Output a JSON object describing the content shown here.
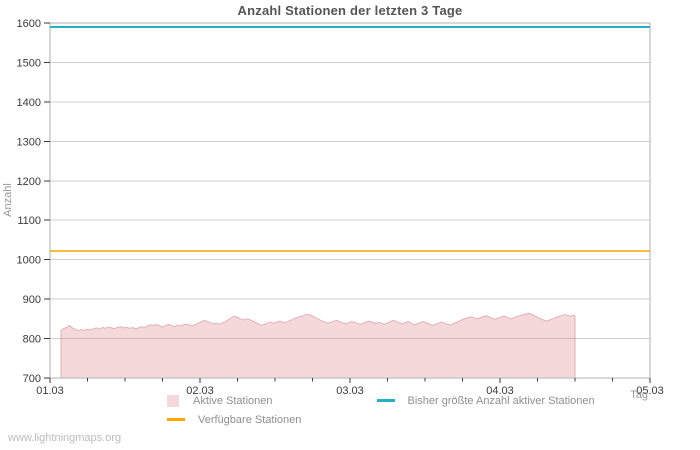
{
  "page": {
    "watermark": "www.lightningmaps.org"
  },
  "colors": {
    "grid": "rgba(135,135,135,0.4)",
    "border": "#b2b2b2",
    "tick": "#3a3a3a",
    "pink_fill": "#f5d8da",
    "pink_edge": "#e2b1b6",
    "teal": "#25b0c7",
    "orange": "#f6a700"
  },
  "chart_data": {
    "type": "area",
    "title": "Anzahl Stationen der letzten 3 Tage",
    "xlabel": "Tag",
    "ylabel": "Anzahl",
    "ylim": [
      700,
      1600
    ],
    "y_ticks": [
      700,
      800,
      900,
      1000,
      1100,
      1200,
      1300,
      1400,
      1500,
      1600
    ],
    "x_ticks": [
      "01.03",
      "02.03",
      "03.03",
      "04.03",
      "05.03"
    ],
    "minor_ticks_per_day": 4,
    "grid": true,
    "legend_position": "bottom",
    "series": [
      {
        "name": "Aktive Stationen",
        "type": "area",
        "fill_color": "#f5d8da",
        "edge_color": "#e2b1b6",
        "points": [
          [
            0.073,
            820
          ],
          [
            0.09,
            825
          ],
          [
            0.11,
            828
          ],
          [
            0.13,
            833
          ],
          [
            0.15,
            827
          ],
          [
            0.17,
            823
          ],
          [
            0.19,
            820
          ],
          [
            0.21,
            823
          ],
          [
            0.23,
            821
          ],
          [
            0.25,
            824
          ],
          [
            0.27,
            822
          ],
          [
            0.29,
            825
          ],
          [
            0.31,
            827
          ],
          [
            0.33,
            824
          ],
          [
            0.35,
            828
          ],
          [
            0.37,
            826
          ],
          [
            0.39,
            829
          ],
          [
            0.41,
            827
          ],
          [
            0.43,
            825
          ],
          [
            0.45,
            828
          ],
          [
            0.47,
            830
          ],
          [
            0.49,
            827
          ],
          [
            0.51,
            829
          ],
          [
            0.53,
            826
          ],
          [
            0.55,
            828
          ],
          [
            0.57,
            825
          ],
          [
            0.59,
            827
          ],
          [
            0.61,
            830
          ],
          [
            0.63,
            828
          ],
          [
            0.65,
            832
          ],
          [
            0.67,
            835
          ],
          [
            0.69,
            833
          ],
          [
            0.71,
            836
          ],
          [
            0.73,
            832
          ],
          [
            0.75,
            829
          ],
          [
            0.77,
            833
          ],
          [
            0.79,
            836
          ],
          [
            0.81,
            833
          ],
          [
            0.83,
            830
          ],
          [
            0.85,
            834
          ],
          [
            0.87,
            832
          ],
          [
            0.89,
            835
          ],
          [
            0.91,
            837
          ],
          [
            0.93,
            834
          ],
          [
            0.95,
            832
          ],
          [
            0.97,
            836
          ],
          [
            0.99,
            839
          ],
          [
            1.01,
            843
          ],
          [
            1.03,
            846
          ],
          [
            1.05,
            843
          ],
          [
            1.07,
            840
          ],
          [
            1.09,
            837
          ],
          [
            1.11,
            839
          ],
          [
            1.13,
            836
          ],
          [
            1.15,
            840
          ],
          [
            1.17,
            843
          ],
          [
            1.19,
            848
          ],
          [
            1.21,
            853
          ],
          [
            1.23,
            857
          ],
          [
            1.25,
            854
          ],
          [
            1.27,
            850
          ],
          [
            1.29,
            847
          ],
          [
            1.31,
            850
          ],
          [
            1.33,
            848
          ],
          [
            1.35,
            845
          ],
          [
            1.37,
            841
          ],
          [
            1.39,
            837
          ],
          [
            1.41,
            833
          ],
          [
            1.43,
            836
          ],
          [
            1.45,
            839
          ],
          [
            1.47,
            842
          ],
          [
            1.49,
            839
          ],
          [
            1.51,
            841
          ],
          [
            1.53,
            844
          ],
          [
            1.55,
            842
          ],
          [
            1.57,
            840
          ],
          [
            1.59,
            844
          ],
          [
            1.61,
            847
          ],
          [
            1.63,
            851
          ],
          [
            1.65,
            854
          ],
          [
            1.67,
            856
          ],
          [
            1.69,
            858
          ],
          [
            1.71,
            862
          ],
          [
            1.73,
            860
          ],
          [
            1.75,
            857
          ],
          [
            1.77,
            853
          ],
          [
            1.79,
            849
          ],
          [
            1.81,
            845
          ],
          [
            1.83,
            842
          ],
          [
            1.85,
            839
          ],
          [
            1.87,
            841
          ],
          [
            1.89,
            844
          ],
          [
            1.91,
            846
          ],
          [
            1.93,
            843
          ],
          [
            1.95,
            840
          ],
          [
            1.97,
            838
          ],
          [
            1.99,
            840
          ],
          [
            2.01,
            843
          ],
          [
            2.03,
            841
          ],
          [
            2.05,
            838
          ],
          [
            2.07,
            836
          ],
          [
            2.09,
            839
          ],
          [
            2.11,
            842
          ],
          [
            2.13,
            844
          ],
          [
            2.15,
            841
          ],
          [
            2.17,
            838
          ],
          [
            2.19,
            841
          ],
          [
            2.21,
            839
          ],
          [
            2.23,
            836
          ],
          [
            2.25,
            840
          ],
          [
            2.27,
            843
          ],
          [
            2.29,
            846
          ],
          [
            2.31,
            843
          ],
          [
            2.33,
            840
          ],
          [
            2.35,
            837
          ],
          [
            2.37,
            841
          ],
          [
            2.39,
            843
          ],
          [
            2.41,
            839
          ],
          [
            2.43,
            835
          ],
          [
            2.45,
            838
          ],
          [
            2.47,
            841
          ],
          [
            2.49,
            843
          ],
          [
            2.51,
            840
          ],
          [
            2.53,
            837
          ],
          [
            2.55,
            833
          ],
          [
            2.57,
            836
          ],
          [
            2.59,
            839
          ],
          [
            2.61,
            842
          ],
          [
            2.63,
            839
          ],
          [
            2.65,
            836
          ],
          [
            2.67,
            834
          ],
          [
            2.69,
            838
          ],
          [
            2.71,
            841
          ],
          [
            2.73,
            845
          ],
          [
            2.75,
            848
          ],
          [
            2.77,
            851
          ],
          [
            2.79,
            853
          ],
          [
            2.81,
            855
          ],
          [
            2.83,
            852
          ],
          [
            2.85,
            850
          ],
          [
            2.87,
            853
          ],
          [
            2.89,
            856
          ],
          [
            2.91,
            858
          ],
          [
            2.93,
            854
          ],
          [
            2.95,
            851
          ],
          [
            2.97,
            849
          ],
          [
            2.99,
            852
          ],
          [
            3.01,
            855
          ],
          [
            3.03,
            857
          ],
          [
            3.05,
            853
          ],
          [
            3.07,
            850
          ],
          [
            3.09,
            852
          ],
          [
            3.11,
            855
          ],
          [
            3.13,
            858
          ],
          [
            3.15,
            860
          ],
          [
            3.17,
            862
          ],
          [
            3.19,
            864
          ],
          [
            3.21,
            862
          ],
          [
            3.23,
            858
          ],
          [
            3.25,
            854
          ],
          [
            3.27,
            850
          ],
          [
            3.29,
            847
          ],
          [
            3.31,
            844
          ],
          [
            3.33,
            847
          ],
          [
            3.35,
            850
          ],
          [
            3.37,
            853
          ],
          [
            3.39,
            856
          ],
          [
            3.41,
            858
          ],
          [
            3.43,
            861
          ],
          [
            3.45,
            859
          ],
          [
            3.47,
            857
          ],
          [
            3.49,
            859
          ],
          [
            3.5,
            857
          ]
        ]
      },
      {
        "name": "Bisher größte Anzahl aktiver Stationen",
        "type": "hline",
        "color": "#25b0c7",
        "value": 1590
      },
      {
        "name": "Verfügbare Stationen",
        "type": "hline",
        "color": "#f6a700",
        "value": 1022
      }
    ]
  }
}
